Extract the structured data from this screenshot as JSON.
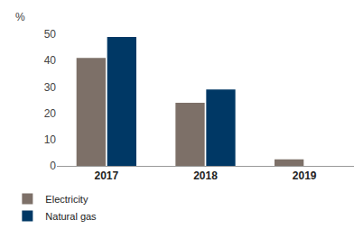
{
  "chart_data": {
    "type": "bar",
    "ylabel": "%",
    "categories": [
      "2017",
      "2018",
      "2019"
    ],
    "series": [
      {
        "name": "Electricity",
        "color": "#7d7068",
        "values": [
          41,
          24,
          2.5
        ]
      },
      {
        "name": "Natural gas",
        "color": "#003865",
        "values": [
          49,
          29,
          0
        ]
      }
    ],
    "ylim": [
      0,
      50
    ],
    "yticks": [
      0,
      10,
      20,
      30,
      40,
      50
    ],
    "grid": false,
    "legend": "bottom left"
  }
}
